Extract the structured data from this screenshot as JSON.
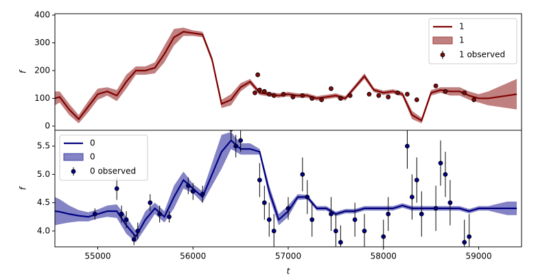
{
  "chart_data": [
    {
      "type": "line",
      "ylabel": "f",
      "legend": "upper right",
      "xlim": [
        54550,
        59450
      ],
      "ylim": [
        -15,
        405
      ],
      "yticks": [
        0,
        100,
        200,
        300,
        400
      ],
      "series": [
        {
          "name": "1",
          "color": "#800000",
          "band_color": "#a03c3c",
          "x": [
            54550,
            54600,
            54700,
            54800,
            54900,
            55000,
            55100,
            55200,
            55300,
            55400,
            55500,
            55600,
            55700,
            55800,
            55900,
            56000,
            56100,
            56200,
            56300,
            56400,
            56500,
            56600,
            56700,
            56800,
            56900,
            57000,
            57100,
            57200,
            57300,
            57400,
            57500,
            57600,
            57700,
            57800,
            57900,
            58000,
            58100,
            58200,
            58300,
            58400,
            58500,
            58600,
            58700,
            58800,
            58900,
            59000,
            59100,
            59200,
            59300,
            59400
          ],
          "values": [
            100,
            105,
            60,
            25,
            70,
            115,
            125,
            110,
            160,
            200,
            200,
            210,
            260,
            320,
            340,
            335,
            330,
            240,
            80,
            95,
            140,
            160,
            120,
            115,
            110,
            115,
            110,
            110,
            100,
            105,
            110,
            100,
            140,
            180,
            130,
            120,
            125,
            115,
            40,
            20,
            120,
            130,
            125,
            125,
            110,
            100,
            100,
            105,
            110,
            115
          ],
          "errors": [
            25,
            20,
            20,
            15,
            20,
            20,
            15,
            20,
            25,
            15,
            15,
            20,
            30,
            30,
            15,
            10,
            10,
            10,
            15,
            20,
            15,
            10,
            8,
            8,
            8,
            8,
            8,
            8,
            8,
            8,
            8,
            8,
            8,
            10,
            8,
            8,
            8,
            8,
            15,
            10,
            10,
            10,
            15,
            15,
            15,
            15,
            25,
            35,
            45,
            55
          ]
        }
      ],
      "observed": {
        "name": "1 observed",
        "color": "#7a0a0a",
        "x": [
          56650,
          56680,
          56700,
          56750,
          56800,
          56850,
          56950,
          57050,
          57150,
          57250,
          57350,
          57450,
          57550,
          57650,
          57850,
          57950,
          58050,
          58150,
          58250,
          58350,
          58550,
          58650,
          58850,
          58950
        ],
        "values": [
          120,
          185,
          130,
          125,
          115,
          110,
          115,
          105,
          110,
          100,
          95,
          135,
          100,
          110,
          115,
          110,
          105,
          120,
          115,
          95,
          145,
          125,
          120,
          95
        ],
        "errors": [
          8,
          8,
          8,
          8,
          8,
          8,
          8,
          8,
          8,
          8,
          8,
          8,
          8,
          8,
          8,
          8,
          8,
          8,
          8,
          8,
          8,
          8,
          8,
          8
        ]
      }
    },
    {
      "type": "line",
      "ylabel": "f",
      "xlabel": "t",
      "legend": "upper left",
      "xlim": [
        54550,
        59450
      ],
      "ylim": [
        3.72,
        5.78
      ],
      "xticks": [
        55000,
        56000,
        57000,
        58000,
        59000
      ],
      "yticks": [
        {
          "value": 4,
          "label": "4.0"
        },
        4.5,
        {
          "value": 5,
          "label": "5.0"
        },
        5.5
      ],
      "series": [
        {
          "name": "0",
          "color": "#000080",
          "band_color": "#4040a8",
          "x": [
            54550,
            54600,
            54700,
            54800,
            54900,
            55000,
            55100,
            55200,
            55300,
            55400,
            55500,
            55600,
            55700,
            55800,
            55900,
            56000,
            56100,
            56200,
            56300,
            56400,
            56500,
            56600,
            56700,
            56800,
            56900,
            57000,
            57100,
            57200,
            57300,
            57400,
            57500,
            57600,
            57700,
            57800,
            57900,
            58000,
            58100,
            58200,
            58300,
            58400,
            58500,
            58600,
            58700,
            58800,
            58900,
            59000,
            59100,
            59200,
            59300,
            59400
          ],
          "values": [
            4.35,
            4.34,
            4.3,
            4.27,
            4.25,
            4.3,
            4.35,
            4.35,
            4.1,
            3.9,
            4.2,
            4.4,
            4.25,
            4.6,
            4.9,
            4.75,
            4.6,
            5.0,
            5.4,
            5.6,
            5.45,
            5.45,
            5.4,
            4.7,
            4.2,
            4.35,
            4.6,
            4.6,
            4.4,
            4.4,
            4.3,
            4.35,
            4.35,
            4.4,
            4.4,
            4.4,
            4.4,
            4.45,
            4.4,
            4.4,
            4.4,
            4.4,
            4.4,
            4.4,
            4.35,
            4.4,
            4.4,
            4.4,
            4.4,
            4.4
          ],
          "errors": [
            0.25,
            0.22,
            0.15,
            0.1,
            0.08,
            0.08,
            0.1,
            0.12,
            0.15,
            0.1,
            0.15,
            0.1,
            0.1,
            0.2,
            0.15,
            0.08,
            0.1,
            0.2,
            0.3,
            0.15,
            0.1,
            0.1,
            0.05,
            0.1,
            0.1,
            0.1,
            0.05,
            0.04,
            0.04,
            0.04,
            0.04,
            0.04,
            0.04,
            0.04,
            0.04,
            0.04,
            0.04,
            0.04,
            0.04,
            0.04,
            0.04,
            0.04,
            0.04,
            0.04,
            0.04,
            0.04,
            0.04,
            0.08,
            0.12,
            0.12
          ]
        }
      ],
      "observed": {
        "name": "0 observed",
        "color": "#000080",
        "x": [
          54970,
          55200,
          55250,
          55300,
          55380,
          55420,
          55550,
          55650,
          55750,
          55950,
          56000,
          56100,
          56400,
          56450,
          56500,
          56700,
          56750,
          56800,
          56850,
          57000,
          57150,
          57200,
          57250,
          57450,
          57500,
          57550,
          57700,
          57800,
          58000,
          58050,
          58250,
          58300,
          58350,
          58400,
          58550,
          58600,
          58650,
          58700,
          58850,
          58900
        ],
        "values": [
          4.3,
          4.75,
          4.3,
          4.2,
          3.85,
          4.0,
          4.5,
          4.3,
          4.25,
          4.8,
          4.7,
          4.65,
          5.8,
          5.5,
          5.6,
          4.9,
          4.5,
          4.2,
          4.0,
          4.4,
          5.0,
          4.6,
          4.2,
          4.3,
          4.0,
          3.8,
          4.2,
          4.0,
          3.9,
          4.3,
          5.5,
          4.6,
          4.9,
          4.3,
          4.4,
          5.2,
          5.0,
          4.5,
          3.8,
          3.9
        ],
        "errors": [
          0.1,
          0.2,
          0.15,
          0.15,
          0.1,
          0.15,
          0.15,
          0.15,
          0.1,
          0.15,
          0.15,
          0.15,
          0.2,
          0.2,
          0.2,
          0.3,
          0.3,
          0.3,
          0.3,
          0.2,
          0.3,
          0.3,
          0.3,
          0.3,
          0.3,
          0.3,
          0.3,
          0.3,
          0.3,
          0.3,
          0.4,
          0.4,
          0.4,
          0.4,
          0.4,
          0.4,
          0.4,
          0.4,
          0.4,
          0.4
        ]
      }
    }
  ]
}
